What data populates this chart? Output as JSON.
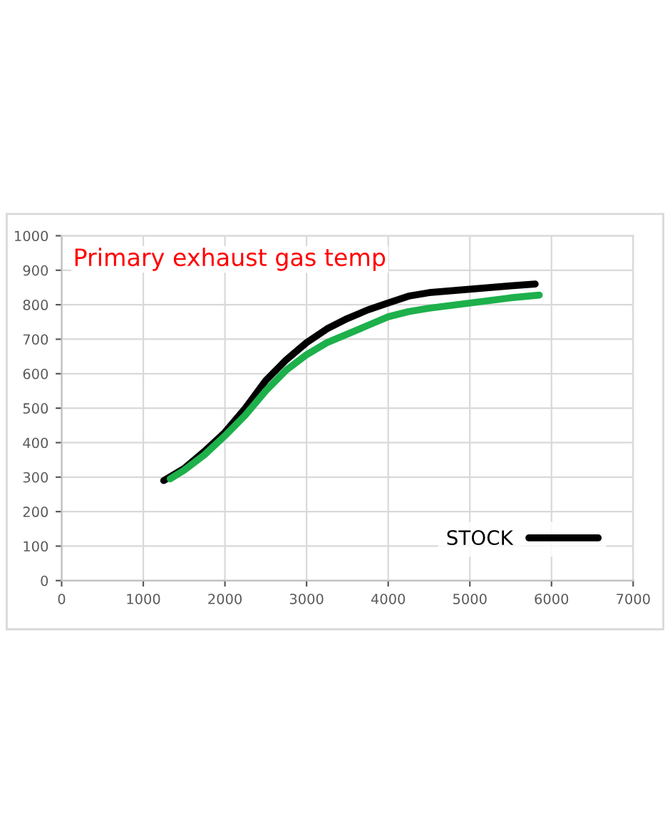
{
  "chart_data": {
    "type": "line",
    "title": "Primary exhaust gas temp",
    "xlim": [
      0,
      7000
    ],
    "xticks": [
      0,
      1000,
      2000,
      3000,
      4000,
      5000,
      6000,
      7000
    ],
    "ylim": [
      0,
      1000
    ],
    "yticks": [
      0,
      100,
      200,
      300,
      400,
      500,
      600,
      700,
      800,
      900,
      1000
    ],
    "grid": true,
    "legend": "bottom right",
    "marker": "none",
    "line_style": "solid",
    "series": [
      {
        "name": "STOCK",
        "color": "#000000",
        "x": [
          1250,
          1500,
          1750,
          2000,
          2250,
          2500,
          2750,
          3000,
          3250,
          3500,
          3750,
          4000,
          4250,
          4500,
          5000,
          5500,
          5800
        ],
        "values": [
          290,
          325,
          375,
          430,
          500,
          580,
          640,
          690,
          730,
          760,
          785,
          805,
          825,
          835,
          845,
          855,
          860
        ]
      },
      {
        "color": "#1db04b",
        "x": [
          1330,
          1500,
          1750,
          2000,
          2250,
          2500,
          2750,
          3000,
          3250,
          3500,
          3750,
          4000,
          4250,
          4500,
          5000,
          5500,
          5850
        ],
        "values": [
          295,
          320,
          365,
          420,
          480,
          550,
          610,
          655,
          690,
          715,
          740,
          765,
          780,
          790,
          805,
          820,
          828
        ]
      }
    ]
  }
}
